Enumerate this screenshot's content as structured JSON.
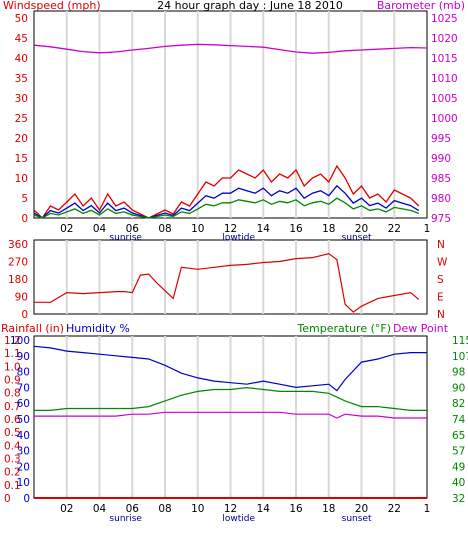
{
  "chart_data": [
    {
      "type": "line",
      "title": "24 hour graph day : June 18 2010",
      "left_axis_label": "Windspeed (mph)",
      "right_axis_label": "Barometer (mb)",
      "left_ticks": [
        "0",
        "5",
        "10",
        "15",
        "20",
        "25",
        "30",
        "35",
        "40",
        "45",
        "50"
      ],
      "right_ticks": [
        "975",
        "980",
        "985",
        "990",
        "995",
        "1000",
        "1005",
        "1010",
        "1015",
        "1020",
        "1025"
      ],
      "x_ticks": [
        "02",
        "04",
        "06",
        "08",
        "10",
        "12",
        "14",
        "16",
        "18",
        "20",
        "22"
      ],
      "x_end_label": "1",
      "event_labels": [
        "sunrise",
        "lowtide",
        "sunset"
      ],
      "left_ylim": [
        0,
        50
      ],
      "right_ylim": [
        975,
        1025
      ],
      "grid": true,
      "colors": {
        "windspeed": "#dd0000",
        "gust": "#0000cc",
        "avg": "#008800",
        "barometer": "#cc00cc",
        "frame": "#000000"
      },
      "series": [
        {
          "name": "Windspeed (mph)",
          "axis": "left",
          "x": [
            0,
            0.5,
            1,
            1.5,
            2,
            2.5,
            3,
            3.5,
            4,
            4.5,
            5,
            5.5,
            6,
            6.5,
            7,
            7.5,
            8,
            8.5,
            9,
            9.5,
            10,
            10.5,
            11,
            11.5,
            12,
            12.5,
            13,
            13.5,
            14,
            14.5,
            15,
            15.5,
            16,
            16.5,
            17,
            17.5,
            18,
            18.5,
            19,
            19.5,
            20,
            20.5,
            21,
            21.5,
            22,
            22.5,
            23,
            23.5
          ],
          "values": [
            2,
            0,
            3,
            2,
            4,
            6,
            3,
            5,
            2,
            6,
            3,
            4,
            2,
            1,
            0,
            1,
            2,
            1,
            4,
            3,
            6,
            9,
            8,
            10,
            10,
            12,
            11,
            10,
            12,
            9,
            11,
            10,
            12,
            8,
            10,
            11,
            9,
            13,
            10,
            6,
            8,
            5,
            6,
            4,
            7,
            6,
            5,
            3
          ]
        },
        {
          "name": "Barometer (mb)",
          "axis": "right",
          "x": [
            0,
            1,
            2,
            3,
            4,
            5,
            6,
            7,
            8,
            9,
            10,
            11,
            12,
            13,
            14,
            15,
            16,
            17,
            18,
            19,
            20,
            21,
            22,
            23,
            24
          ],
          "values": [
            1018.2,
            1017.8,
            1017.2,
            1016.6,
            1016.3,
            1016.5,
            1017.0,
            1017.4,
            1017.9,
            1018.2,
            1018.4,
            1018.3,
            1018.1,
            1017.9,
            1017.7,
            1017.1,
            1016.5,
            1016.2,
            1016.4,
            1016.8,
            1017.0,
            1017.2,
            1017.4,
            1017.6,
            1017.5
          ]
        }
      ]
    },
    {
      "type": "line",
      "left_ticks": [
        "0",
        "90",
        "180",
        "270",
        "360"
      ],
      "right_ticks": [
        "N",
        "E",
        "S",
        "W",
        "N"
      ],
      "left_ylim": [
        0,
        360
      ],
      "series": [
        {
          "name": "Wind direction",
          "x": [
            0,
            1,
            2,
            3,
            4,
            5,
            5.5,
            6,
            6.5,
            7,
            7.5,
            8,
            8.5,
            9,
            10,
            11,
            12,
            13,
            14,
            15,
            16,
            17,
            17.5,
            18,
            18.5,
            19,
            19.5,
            20,
            21,
            22,
            23,
            23.5
          ],
          "values": [
            60,
            60,
            110,
            105,
            110,
            115,
            115,
            110,
            200,
            205,
            160,
            120,
            80,
            240,
            230,
            240,
            250,
            255,
            265,
            270,
            285,
            290,
            300,
            310,
            280,
            50,
            10,
            40,
            80,
            95,
            110,
            75
          ]
        }
      ]
    },
    {
      "type": "line",
      "left_axis_label": "Rainfall (in)",
      "left_axis_label_2": "Humidity %",
      "right_axis_label": "Temperature (°F)",
      "right_axis_label_2": "Dew Point",
      "rain_ticks": [
        "0",
        "0.1",
        "0.2",
        "0.3",
        "0.4",
        "0.5",
        "0.6",
        "0.7",
        "0.8",
        "0.9",
        "1.0",
        "1.1",
        "1.2"
      ],
      "humidity_ticks": [
        "0",
        "10",
        "20",
        "30",
        "40",
        "50",
        "60",
        "70",
        "80",
        "90",
        "100"
      ],
      "right_ticks": [
        "32",
        "40",
        "49",
        "57",
        "65",
        "74",
        "82",
        "90",
        "98",
        "107",
        "115"
      ],
      "humidity_ylim": [
        0,
        100
      ],
      "temperature_ylim": [
        32,
        115
      ],
      "series": [
        {
          "name": "Humidity %",
          "x": [
            0,
            1,
            2,
            3,
            4,
            5,
            6,
            7,
            8,
            9,
            10,
            11,
            12,
            13,
            14,
            15,
            16,
            17,
            18,
            18.5,
            19,
            20,
            21,
            22,
            23,
            24
          ],
          "values": [
            96,
            95,
            93,
            92,
            91,
            90,
            89,
            88,
            84,
            79,
            76,
            74,
            73,
            72,
            74,
            72,
            70,
            71,
            72,
            68,
            75,
            86,
            88,
            91,
            92,
            92
          ]
        },
        {
          "name": "Temperature (°F)",
          "x": [
            0,
            1,
            2,
            3,
            4,
            5,
            6,
            7,
            8,
            9,
            10,
            11,
            12,
            13,
            14,
            15,
            16,
            17,
            18,
            19,
            20,
            21,
            22,
            23,
            24
          ],
          "values": [
            78,
            78,
            79,
            79,
            79,
            79,
            79,
            80,
            83,
            86,
            88,
            89,
            89,
            90,
            89,
            88,
            88,
            88,
            87,
            83,
            80,
            80,
            79,
            78,
            78
          ]
        },
        {
          "name": "Dew Point",
          "x": [
            0,
            1,
            2,
            3,
            4,
            5,
            6,
            7,
            8,
            9,
            10,
            11,
            12,
            13,
            14,
            15,
            16,
            17,
            18,
            18.5,
            19,
            20,
            21,
            22,
            23,
            24
          ],
          "values": [
            75,
            75,
            75,
            75,
            75,
            75,
            76,
            76,
            77,
            77,
            77,
            77,
            77,
            77,
            77,
            77,
            76,
            76,
            76,
            74,
            76,
            75,
            75,
            74,
            74,
            74
          ]
        },
        {
          "name": "Rainfall (in)",
          "x": [
            0,
            24
          ],
          "values": [
            0,
            0
          ]
        }
      ]
    }
  ]
}
